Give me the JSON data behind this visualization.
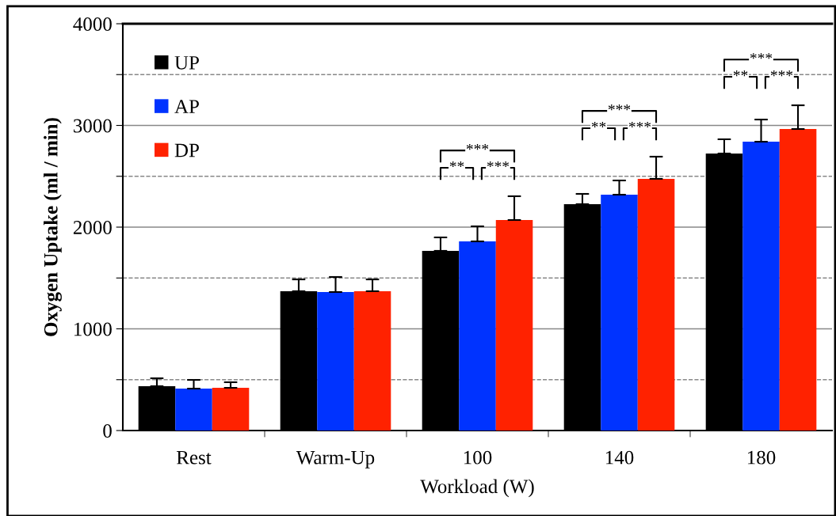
{
  "chart_data": {
    "type": "bar",
    "xlabel": "Workload (W)",
    "ylabel": "Oxygen Uptake (ml / min)",
    "categories": [
      "Rest",
      "Warm-Up",
      "100",
      "140",
      "180"
    ],
    "series": [
      {
        "name": "UP",
        "color": "#000000",
        "values": [
          436,
          1370,
          1767,
          2226,
          2724
        ],
        "errors": [
          78,
          116,
          132,
          101,
          140
        ]
      },
      {
        "name": "AP",
        "color": "#0033ff",
        "values": [
          412,
          1362,
          1860,
          2319,
          2840
        ],
        "errors": [
          86,
          148,
          148,
          140,
          218
        ]
      },
      {
        "name": "DP",
        "color": "#ff2200",
        "values": [
          420,
          1370,
          2070,
          2475,
          2965
        ],
        "errors": [
          55,
          116,
          234,
          218,
          233
        ]
      }
    ],
    "ylim": [
      0,
      4000
    ],
    "yticks": [
      0,
      {
        "value": 500,
        "label": null
      },
      1000,
      {
        "value": 1500,
        "label": null
      },
      2000,
      {
        "value": 2500,
        "label": null
      },
      3000,
      {
        "value": 3500,
        "label": null
      },
      4000
    ],
    "grid": "y",
    "legend": "top left",
    "annotations": [
      "**",
      "***",
      "***",
      "**",
      "***",
      "***",
      "**",
      "***",
      "***"
    ]
  }
}
